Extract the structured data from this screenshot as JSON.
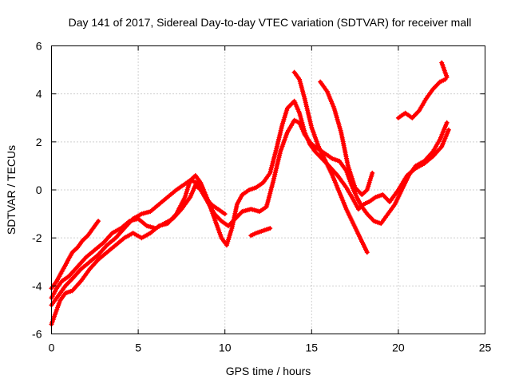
{
  "chart_data": {
    "type": "scatter",
    "title": "Day 141 of 2017, Sidereal Day-to-day VTEC variation (SDTVAR) for receiver mall",
    "xlabel": "GPS time / hours",
    "ylabel": "SDTVAR / TECUs",
    "xlim": [
      0,
      25
    ],
    "ylim": [
      -6,
      6
    ],
    "xticks": [
      0,
      5,
      10,
      15,
      20,
      25
    ],
    "yticks": [
      -6,
      -4,
      -2,
      0,
      2,
      4,
      6
    ],
    "grid": true,
    "marker": "+",
    "series_color": "#ff0000",
    "series": [
      {
        "x": [
          0.0,
          0.2,
          0.5,
          0.8,
          1.2,
          1.7,
          2.2,
          2.7,
          3.2,
          3.7,
          4.2,
          4.7,
          5.2,
          5.7,
          6.2,
          6.7,
          7.2,
          7.7,
          8.0,
          8.3,
          8.6,
          9.0,
          9.4,
          9.8,
          10.1,
          10.4,
          10.7,
          11.0,
          11.4,
          11.8,
          12.2,
          12.6,
          13.0,
          13.3,
          13.6,
          14.0,
          14.3,
          14.6,
          14.9,
          15.2,
          15.6,
          16.0,
          16.5,
          17.0,
          17.4,
          17.7,
          18.0,
          18.3,
          18.7,
          19.1,
          19.5,
          20.0,
          20.5,
          21.0,
          21.5,
          22.0,
          22.5,
          22.9
        ],
        "y": [
          -5.6,
          -5.2,
          -4.6,
          -4.3,
          -4.2,
          -3.8,
          -3.3,
          -2.9,
          -2.6,
          -2.3,
          -2.0,
          -1.8,
          -2.0,
          -1.8,
          -1.5,
          -1.4,
          -1.0,
          -0.3,
          0.4,
          0.6,
          0.3,
          -0.4,
          -1.2,
          -2.0,
          -2.3,
          -1.6,
          -0.6,
          -0.2,
          0.0,
          0.1,
          0.3,
          0.7,
          1.8,
          2.7,
          3.4,
          3.7,
          3.2,
          2.4,
          1.9,
          1.6,
          1.3,
          1.0,
          0.6,
          0.1,
          -0.4,
          -0.8,
          -0.6,
          -0.5,
          -0.3,
          -0.2,
          -0.5,
          0.0,
          0.6,
          0.9,
          1.1,
          1.4,
          1.8,
          2.5
        ]
      },
      {
        "x": [
          0.0,
          0.3,
          0.6,
          1.0,
          1.5,
          2.0,
          2.5,
          3.0,
          3.5,
          4.0,
          4.5,
          5.0,
          5.5,
          6.0,
          6.5,
          7.0,
          7.5,
          8.0,
          8.3,
          8.6,
          9.0,
          9.4,
          9.8,
          10.2,
          10.6,
          11.0,
          11.5,
          12.0,
          12.4,
          12.8,
          13.2,
          13.6,
          14.0,
          14.3,
          14.6,
          15.0,
          15.4,
          15.8,
          16.2,
          16.6,
          17.0,
          17.3,
          17.6,
          17.9,
          18.2,
          18.6,
          19.0,
          19.4,
          19.8,
          20.2,
          20.6,
          21.0,
          21.5,
          22.0,
          22.4,
          22.8
        ],
        "y": [
          -4.5,
          -4.1,
          -3.8,
          -3.6,
          -3.2,
          -2.8,
          -2.5,
          -2.2,
          -1.8,
          -1.6,
          -1.3,
          -1.2,
          -1.5,
          -1.6,
          -1.4,
          -1.2,
          -0.8,
          -0.3,
          0.2,
          0.0,
          -0.5,
          -1.0,
          -1.3,
          -1.5,
          -1.2,
          -0.9,
          -0.8,
          -0.9,
          -0.7,
          0.4,
          1.6,
          2.4,
          2.9,
          2.8,
          2.3,
          1.9,
          1.7,
          1.5,
          1.3,
          1.2,
          0.8,
          0.2,
          -0.3,
          -0.7,
          -1.0,
          -1.3,
          -1.4,
          -1.0,
          -0.6,
          0.0,
          0.6,
          1.0,
          1.2,
          1.6,
          2.1,
          2.8
        ]
      },
      {
        "x": [
          0.0,
          0.4,
          0.8,
          1.2,
          1.7,
          2.2,
          2.7,
          3.2,
          3.7,
          4.2,
          4.7,
          5.2,
          5.7,
          6.2,
          6.7,
          7.2,
          7.6,
          8.0,
          8.4,
          8.8,
          9.2,
          9.6,
          10.0
        ],
        "y": [
          -4.8,
          -4.4,
          -4.0,
          -3.7,
          -3.3,
          -3.0,
          -2.7,
          -2.3,
          -2.0,
          -1.6,
          -1.2,
          -1.0,
          -0.9,
          -0.6,
          -0.3,
          0.0,
          0.2,
          0.4,
          0.3,
          -0.2,
          -0.6,
          -0.8,
          -1.0
        ]
      },
      {
        "x": [
          0.0,
          0.3,
          0.6,
          0.9,
          1.2,
          1.5,
          1.8,
          2.1,
          2.4,
          2.7
        ],
        "y": [
          -4.1,
          -3.8,
          -3.4,
          -3.0,
          -2.6,
          -2.4,
          -2.1,
          -1.9,
          -1.6,
          -1.3
        ]
      },
      {
        "x": [
          14.0,
          14.3,
          14.6,
          15.0,
          15.4,
          15.8,
          16.2,
          16.6,
          17.0,
          17.4,
          17.8,
          18.2
        ],
        "y": [
          4.9,
          4.6,
          3.8,
          2.6,
          1.8,
          1.2,
          0.6,
          -0.1,
          -0.8,
          -1.4,
          -2.0,
          -2.6
        ]
      },
      {
        "x": [
          15.5,
          15.9,
          16.3,
          16.7,
          17.1,
          17.5,
          17.9,
          18.2,
          18.5
        ],
        "y": [
          4.5,
          4.1,
          3.4,
          2.4,
          1.0,
          0.1,
          -0.2,
          0.0,
          0.7
        ]
      },
      {
        "x": [
          20.0,
          20.4,
          20.8,
          21.2,
          21.6,
          22.0,
          22.4,
          22.7
        ],
        "y": [
          3.0,
          3.2,
          3.0,
          3.3,
          3.8,
          4.2,
          4.5,
          4.6
        ]
      },
      {
        "x": [
          22.5,
          22.6,
          22.7,
          22.8
        ],
        "y": [
          5.3,
          5.1,
          4.9,
          4.7
        ]
      },
      {
        "x": [
          11.5,
          11.8,
          12.2,
          12.6
        ],
        "y": [
          -1.9,
          -1.8,
          -1.7,
          -1.6
        ]
      }
    ]
  }
}
